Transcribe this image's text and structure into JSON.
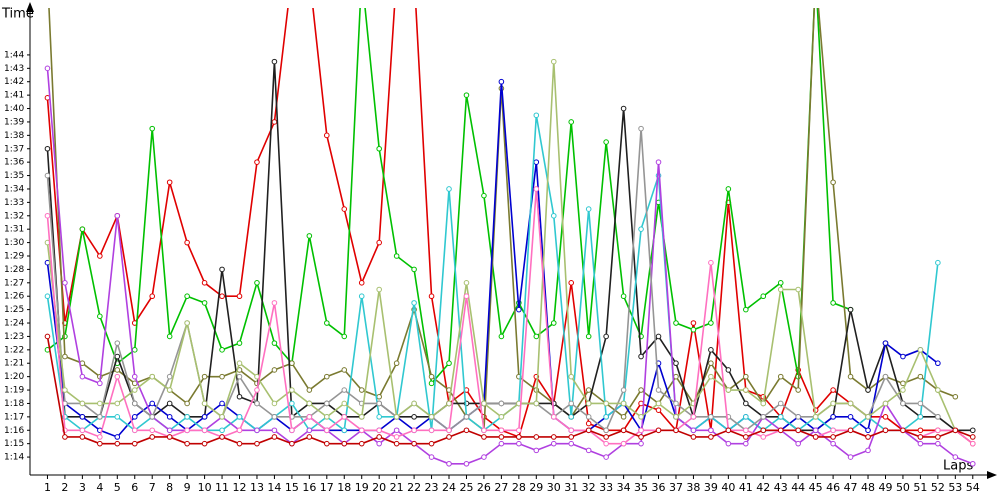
{
  "chart_data": {
    "type": "line",
    "y_label": "Time",
    "x_label": "Laps",
    "x": [
      1,
      2,
      3,
      4,
      5,
      6,
      7,
      8,
      9,
      10,
      11,
      12,
      13,
      14,
      15,
      16,
      17,
      18,
      19,
      20,
      21,
      22,
      23,
      24,
      25,
      26,
      27,
      28,
      29,
      30,
      31,
      32,
      33,
      34,
      35,
      36,
      37,
      38,
      39,
      40,
      41,
      42,
      43,
      44,
      45,
      46,
      47,
      48,
      49,
      50,
      51,
      52,
      53,
      54
    ],
    "xlim": [
      0,
      54.7
    ],
    "xticks": [
      1,
      2,
      3,
      4,
      5,
      6,
      7,
      8,
      9,
      10,
      11,
      12,
      13,
      14,
      15,
      16,
      17,
      18,
      19,
      20,
      21,
      22,
      23,
      24,
      25,
      26,
      27,
      28,
      29,
      30,
      31,
      32,
      33,
      34,
      35,
      36,
      37,
      38,
      39,
      40,
      41,
      42,
      43,
      44,
      45,
      46,
      47,
      48,
      49,
      50,
      51,
      52,
      53,
      54
    ],
    "ylim": [
      72.7,
      107.5
    ],
    "yticks": [
      {
        "value": 74,
        "label": "1:14"
      },
      {
        "value": 75,
        "label": "1:15"
      },
      {
        "value": 76,
        "label": "1:16"
      },
      {
        "value": 77,
        "label": "1:17"
      },
      {
        "value": 78,
        "label": "1:18"
      },
      {
        "value": 79,
        "label": "1:19"
      },
      {
        "value": 80,
        "label": "1:20"
      },
      {
        "value": 81,
        "label": "1:21"
      },
      {
        "value": 82,
        "label": "1:22"
      },
      {
        "value": 83,
        "label": "1:23"
      },
      {
        "value": 84,
        "label": "1:24"
      },
      {
        "value": 85,
        "label": "1:25"
      },
      {
        "value": 86,
        "label": "1:26"
      },
      {
        "value": 87,
        "label": "1:27"
      },
      {
        "value": 88,
        "label": "1:28"
      },
      {
        "value": 89,
        "label": "1:29"
      },
      {
        "value": 90,
        "label": "1:30"
      },
      {
        "value": 91,
        "label": "1:31"
      },
      {
        "value": 92,
        "label": "1:32"
      },
      {
        "value": 93,
        "label": "1:33"
      },
      {
        "value": 94,
        "label": "1:34"
      },
      {
        "value": 95,
        "label": "1:35"
      },
      {
        "value": 96,
        "label": "1:36"
      },
      {
        "value": 97,
        "label": "1:37"
      },
      {
        "value": 98,
        "label": "1:38"
      },
      {
        "value": 99,
        "label": "1:39"
      },
      {
        "value": 100,
        "label": "1:40"
      },
      {
        "value": 101,
        "label": "1:41"
      },
      {
        "value": 102,
        "label": "1:42"
      },
      {
        "value": 103,
        "label": "1:43"
      },
      {
        "value": 104,
        "label": "1:44"
      }
    ],
    "series": [
      {
        "color": "#e00000",
        "values": [
          100.8,
          84,
          91,
          89,
          92,
          84,
          86,
          94.5,
          90,
          87,
          86,
          86,
          96,
          99,
          110,
          110,
          98,
          92.5,
          87,
          90,
          110,
          110,
          86,
          78,
          79,
          77,
          76,
          75.5,
          80,
          78,
          87,
          76.5,
          76,
          76,
          78,
          77.5,
          76,
          84,
          76,
          93,
          79,
          78.5,
          77,
          80.5,
          77.5,
          79,
          78,
          77,
          77,
          76,
          76,
          76,
          76,
          75
        ]
      },
      {
        "color": "#00c000",
        "values": [
          82,
          83,
          91,
          84.5,
          81,
          82,
          98.5,
          83,
          86,
          85.5,
          82,
          82.5,
          87,
          82.5,
          81,
          90.5,
          84,
          83,
          110,
          97,
          89,
          88,
          79.5,
          81,
          101,
          93.5,
          83,
          85.5,
          83,
          84,
          99,
          83,
          97.5,
          86,
          83,
          93,
          84,
          83.5,
          84,
          94,
          85,
          86,
          87,
          80,
          110,
          85.5,
          85,
          null,
          null,
          null,
          null,
          null,
          null,
          null
        ]
      },
      {
        "color": "#7a7a30",
        "values": [
          110,
          81.5,
          81,
          80,
          80.5,
          79.5,
          80,
          79,
          78,
          80,
          80,
          80.5,
          79.5,
          80.5,
          81,
          79,
          80,
          80.5,
          79,
          78.5,
          81,
          85,
          80,
          79,
          77,
          76,
          101.5,
          80,
          79,
          78,
          77,
          79,
          78,
          77,
          79,
          78,
          80,
          78,
          81,
          79,
          80,
          78,
          80,
          79,
          110,
          94.5,
          80,
          79,
          80,
          79.5,
          80,
          79,
          78.5,
          null
        ]
      },
      {
        "color": "#202020",
        "values": [
          97,
          77,
          77,
          77,
          81.5,
          78,
          77,
          78,
          77,
          77,
          88,
          78.5,
          78,
          103.5,
          77,
          78,
          78,
          77,
          77,
          78,
          77,
          77,
          77,
          78,
          78,
          78,
          78,
          78,
          78,
          78,
          77,
          78,
          83,
          100,
          81.5,
          83,
          81,
          77,
          82,
          80.5,
          78,
          77,
          77,
          76,
          76,
          77,
          85,
          79,
          82.5,
          78,
          77,
          77,
          76,
          76
        ]
      },
      {
        "color": "#0000d0",
        "values": [
          88.5,
          78,
          77,
          76,
          75.5,
          77,
          78,
          77,
          76,
          77,
          78,
          77,
          76,
          77,
          76,
          77,
          76,
          76,
          76,
          76,
          77,
          76,
          77,
          76,
          77,
          78,
          102,
          85,
          96,
          77,
          76,
          76,
          77,
          78,
          76,
          81,
          77,
          76,
          77,
          76,
          77,
          76,
          76,
          77,
          76,
          77,
          77,
          76,
          82.5,
          81.5,
          82,
          81,
          null,
          null
        ]
      },
      {
        "color": "#30c8d0",
        "values": [
          86,
          77,
          76,
          77,
          77,
          76,
          77,
          76,
          77,
          76,
          76,
          77,
          76,
          77,
          78,
          76,
          77,
          76,
          86,
          77,
          77,
          85.5,
          76,
          94,
          77,
          76,
          77,
          78,
          99.5,
          92,
          77,
          92.5,
          77,
          78,
          91,
          95,
          77,
          76,
          77,
          76,
          77,
          76,
          77,
          76,
          77,
          76,
          76,
          77,
          76,
          76,
          77,
          88.5,
          null,
          null
        ]
      },
      {
        "color": "#b040e0",
        "values": [
          103,
          87,
          80,
          79.5,
          92,
          80,
          77,
          76,
          76,
          76,
          77,
          76,
          76,
          76,
          75,
          76,
          76,
          75,
          76,
          75,
          76,
          75,
          74,
          73.5,
          73.5,
          74,
          75,
          75,
          74.5,
          75,
          75,
          74.5,
          74,
          75,
          75,
          96,
          77,
          76,
          76,
          75,
          75,
          77,
          76,
          75,
          76,
          75,
          74,
          74.5,
          78,
          76,
          75,
          75,
          74,
          73.5
        ]
      },
      {
        "color": "#959595",
        "values": [
          95,
          78,
          78,
          77,
          82.5,
          78,
          77,
          80,
          84,
          78,
          77,
          80,
          78,
          77,
          77,
          77,
          78,
          79,
          78,
          78,
          77,
          78,
          77,
          76,
          77,
          78,
          78,
          78,
          78,
          77,
          78,
          77,
          76,
          79,
          98.5,
          79,
          78,
          77,
          77,
          77,
          76,
          77,
          78,
          77,
          77,
          78,
          78,
          77,
          80,
          78,
          78,
          77,
          null,
          null
        ]
      },
      {
        "color": "#a8c070",
        "values": [
          90,
          79,
          78,
          78,
          78,
          79,
          80,
          79,
          84,
          78,
          77,
          81,
          80,
          78,
          79,
          78,
          77,
          78,
          77,
          86.5,
          77,
          78,
          77,
          78,
          87,
          78,
          77,
          78,
          78,
          103.5,
          80,
          78,
          78,
          78,
          77,
          78,
          77,
          78,
          80,
          79,
          79,
          78,
          86.5,
          86.5,
          77,
          78,
          78,
          77,
          78,
          79,
          82,
          79,
          76,
          null
        ]
      },
      {
        "color": "#ff70c0",
        "values": [
          92,
          76,
          76,
          75.5,
          80,
          76,
          76,
          75.5,
          76,
          76,
          75.5,
          76,
          79,
          85.5,
          76,
          77,
          76,
          77,
          76,
          76,
          75.5,
          76,
          76,
          76,
          86,
          76,
          76,
          76,
          94,
          77,
          76,
          76,
          75,
          75,
          76,
          76,
          76,
          77,
          88.5,
          76,
          76,
          75.5,
          76,
          76,
          75.5,
          76,
          76,
          75.5,
          76,
          76,
          75.5,
          76,
          76,
          75
        ]
      },
      {
        "color": "#c00000",
        "values": [
          83,
          75.5,
          75.5,
          75,
          75,
          75,
          75.5,
          75.5,
          75,
          75,
          75.5,
          75,
          75,
          75.5,
          75,
          75.5,
          75,
          75,
          75,
          75.5,
          75,
          75,
          75,
          75.5,
          76,
          75.5,
          75.5,
          75.5,
          75.5,
          75.5,
          75.5,
          76,
          75.5,
          76,
          75.5,
          76,
          76,
          75.5,
          75.5,
          76,
          75.5,
          76,
          76,
          76,
          75.5,
          75.5,
          76,
          75.5,
          76,
          76,
          75.5,
          75.5,
          76,
          75.5
        ]
      }
    ]
  }
}
